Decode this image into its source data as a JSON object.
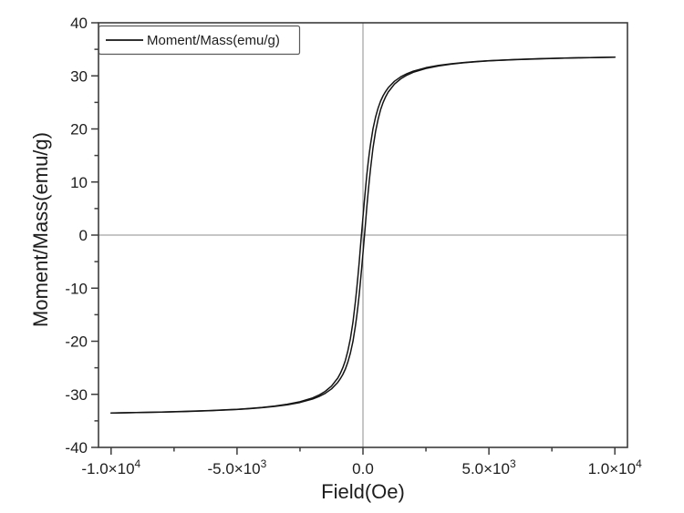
{
  "colors": {
    "background": "#ffffff",
    "curve": "#141414",
    "frame": "#3c3c3c",
    "zero_line": "#8c8c8c",
    "text": "#1d1d1d",
    "legend_border": "#5a5a5a"
  },
  "chart_data": {
    "type": "line",
    "title": "",
    "xlabel": "Field(Oe)",
    "ylabel": "Moment/Mass(emu/g)",
    "xlim": [
      -10500,
      10500
    ],
    "ylim": [
      -40,
      40
    ],
    "grid": false,
    "zero_reference_lines": true,
    "legend": {
      "position": "top-left",
      "entries": [
        {
          "label": "Moment/Mass(emu/g)",
          "line_color": "#141414"
        }
      ]
    },
    "x_axis": {
      "major_ticks": [
        {
          "value": -10000,
          "label": "-1.0×10^4"
        },
        {
          "value": -5000,
          "label": "-5.0×10^3"
        },
        {
          "value": 0,
          "label": "0.0"
        },
        {
          "value": 5000,
          "label": "5.0×10^3"
        },
        {
          "value": 10000,
          "label": "1.0×10^4"
        }
      ],
      "minor_ticks": [
        -7500,
        -2500,
        2500,
        7500
      ]
    },
    "y_axis": {
      "major_ticks": [
        {
          "value": 40,
          "label": "40"
        },
        {
          "value": 30,
          "label": "30"
        },
        {
          "value": 20,
          "label": "20"
        },
        {
          "value": 10,
          "label": "10"
        },
        {
          "value": 0,
          "label": "0"
        },
        {
          "value": -10,
          "label": "-10"
        },
        {
          "value": -20,
          "label": "-20"
        },
        {
          "value": -30,
          "label": "-30"
        },
        {
          "value": -40,
          "label": "-40"
        }
      ],
      "minor_ticks": [
        35,
        25,
        15,
        5,
        -5,
        -15,
        -25,
        -35
      ]
    },
    "series": [
      {
        "name": "Moment/Mass(emu/g)",
        "color": "#141414",
        "branches": {
          "descending": [
            [
              10000,
              33.52
            ],
            [
              9000,
              33.45
            ],
            [
              8000,
              33.35
            ],
            [
              7000,
              33.23
            ],
            [
              6000,
              33.07
            ],
            [
              5000,
              32.85
            ],
            [
              4500,
              32.7
            ],
            [
              4000,
              32.52
            ],
            [
              3500,
              32.28
            ],
            [
              3000,
              31.96
            ],
            [
              2500,
              31.53
            ],
            [
              2000,
              30.88
            ],
            [
              1750,
              30.42
            ],
            [
              1500,
              29.82
            ],
            [
              1250,
              28.98
            ],
            [
              1000,
              27.75
            ],
            [
              900,
              27.08
            ],
            [
              800,
              26.26
            ],
            [
              700,
              25.23
            ],
            [
              600,
              23.93
            ],
            [
              500,
              22.24
            ],
            [
              400,
              20.03
            ],
            [
              300,
              17.12
            ],
            [
              250,
              15.36
            ],
            [
              200,
              13.38
            ],
            [
              150,
              11.17
            ],
            [
              100,
              8.75
            ],
            [
              50,
              6.15
            ],
            [
              0,
              3.4
            ],
            [
              -50,
              0.57
            ],
            [
              -60,
              0.0
            ],
            [
              -100,
              -2.27
            ],
            [
              -150,
              -5.06
            ],
            [
              -200,
              -7.73
            ],
            [
              -250,
              -10.23
            ],
            [
              -300,
              -12.52
            ],
            [
              -400,
              -16.44
            ],
            [
              -500,
              -19.5
            ],
            [
              -600,
              -21.84
            ],
            [
              -700,
              -23.63
            ],
            [
              -800,
              -25.0
            ],
            [
              -900,
              -26.07
            ],
            [
              -1000,
              -26.93
            ],
            [
              -1250,
              -28.45
            ],
            [
              -1500,
              -29.45
            ],
            [
              -1750,
              -30.15
            ],
            [
              -2000,
              -30.67
            ],
            [
              -2500,
              -31.4
            ],
            [
              -3000,
              -31.87
            ],
            [
              -3500,
              -32.21
            ],
            [
              -4000,
              -32.46
            ],
            [
              -4500,
              -32.66
            ],
            [
              -5000,
              -32.82
            ],
            [
              -6000,
              -33.05
            ],
            [
              -7000,
              -33.21
            ],
            [
              -8000,
              -33.34
            ],
            [
              -9000,
              -33.44
            ],
            [
              -10000,
              -33.51
            ]
          ],
          "ascending": [
            [
              -10000,
              -33.52
            ],
            [
              -9000,
              -33.45
            ],
            [
              -8000,
              -33.35
            ],
            [
              -7000,
              -33.23
            ],
            [
              -6000,
              -33.07
            ],
            [
              -5000,
              -32.85
            ],
            [
              -4500,
              -32.7
            ],
            [
              -4000,
              -32.52
            ],
            [
              -3500,
              -32.28
            ],
            [
              -3000,
              -31.96
            ],
            [
              -2500,
              -31.53
            ],
            [
              -2000,
              -30.88
            ],
            [
              -1750,
              -30.42
            ],
            [
              -1500,
              -29.82
            ],
            [
              -1250,
              -28.98
            ],
            [
              -1000,
              -27.75
            ],
            [
              -900,
              -27.08
            ],
            [
              -800,
              -26.26
            ],
            [
              -700,
              -25.23
            ],
            [
              -600,
              -23.93
            ],
            [
              -500,
              -22.24
            ],
            [
              -400,
              -20.03
            ],
            [
              -300,
              -17.12
            ],
            [
              -250,
              -15.36
            ],
            [
              -200,
              -13.38
            ],
            [
              -150,
              -11.17
            ],
            [
              -100,
              -8.75
            ],
            [
              -50,
              -6.15
            ],
            [
              0,
              -3.4
            ],
            [
              50,
              -0.57
            ],
            [
              60,
              0.0
            ],
            [
              100,
              2.27
            ],
            [
              150,
              5.06
            ],
            [
              200,
              7.73
            ],
            [
              250,
              10.23
            ],
            [
              300,
              12.52
            ],
            [
              400,
              16.44
            ],
            [
              500,
              19.5
            ],
            [
              600,
              21.84
            ],
            [
              700,
              23.63
            ],
            [
              800,
              25.0
            ],
            [
              900,
              26.07
            ],
            [
              1000,
              26.93
            ],
            [
              1250,
              28.45
            ],
            [
              1500,
              29.45
            ],
            [
              1750,
              30.15
            ],
            [
              2000,
              30.67
            ],
            [
              2500,
              31.4
            ],
            [
              3000,
              31.87
            ],
            [
              3500,
              32.21
            ],
            [
              4000,
              32.46
            ],
            [
              4500,
              32.66
            ],
            [
              5000,
              32.82
            ],
            [
              6000,
              33.05
            ],
            [
              7000,
              33.21
            ],
            [
              8000,
              33.34
            ],
            [
              9000,
              33.44
            ],
            [
              10000,
              33.51
            ]
          ]
        }
      }
    ]
  }
}
